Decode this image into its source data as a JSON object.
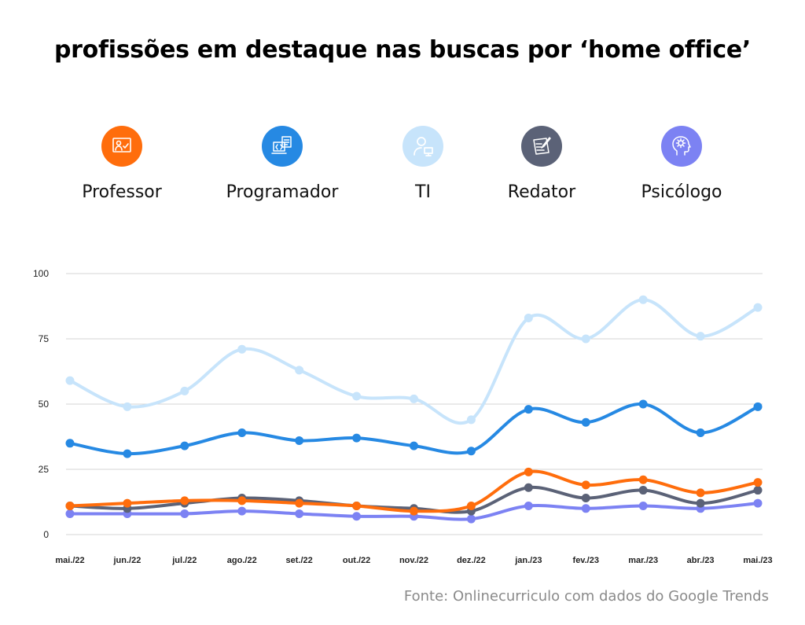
{
  "title": "profissões em destaque nas buscas por ‘home office’",
  "legend": [
    {
      "label": "Professor",
      "color": "#ff6d0c",
      "icon": "presentation-board-icon"
    },
    {
      "label": "Programador",
      "color": "#2689e3",
      "icon": "code-document-icon"
    },
    {
      "label": "TI",
      "color": "#c7e4fb",
      "icon": "user-computer-icon"
    },
    {
      "label": "Redator",
      "color": "#5b6277",
      "icon": "writing-document-icon"
    },
    {
      "label": "Psicólogo",
      "color": "#7c82f3",
      "icon": "head-gear-icon"
    }
  ],
  "source": "Fonte: Onlinecurriculo com dados do Google Trends",
  "chart_data": {
    "type": "line",
    "title": "profissões em destaque nas buscas por ‘home office’",
    "categories": [
      "mai./22",
      "jun./22",
      "jul./22",
      "ago./22",
      "set./22",
      "out./22",
      "nov./22",
      "dez./22",
      "jan./23",
      "fev./23",
      "mar./23",
      "abr./23",
      "mai./23"
    ],
    "ylim": [
      0,
      100
    ],
    "yticks": [
      "0",
      "25",
      "50",
      "75",
      "100"
    ],
    "grid": true,
    "series": [
      {
        "name": "TI",
        "color": "#c7e4fb",
        "values": [
          59,
          49,
          55,
          71,
          63,
          53,
          52,
          44,
          83,
          75,
          90,
          76,
          87
        ]
      },
      {
        "name": "Programador",
        "color": "#2689e3",
        "values": [
          35,
          31,
          34,
          39,
          36,
          37,
          34,
          32,
          48,
          43,
          50,
          39,
          49
        ]
      },
      {
        "name": "Psicólogo",
        "color": "#7c82f3",
        "values": [
          8,
          8,
          8,
          9,
          8,
          7,
          7,
          6,
          11,
          10,
          11,
          10,
          12
        ]
      },
      {
        "name": "Redator",
        "color": "#5b6277",
        "values": [
          11,
          10,
          12,
          14,
          13,
          11,
          10,
          9,
          18,
          14,
          17,
          12,
          17
        ]
      },
      {
        "name": "Professor",
        "color": "#ff6d0c",
        "values": [
          11,
          12,
          13,
          13,
          12,
          11,
          9,
          11,
          24,
          19,
          21,
          16,
          20
        ]
      }
    ]
  }
}
